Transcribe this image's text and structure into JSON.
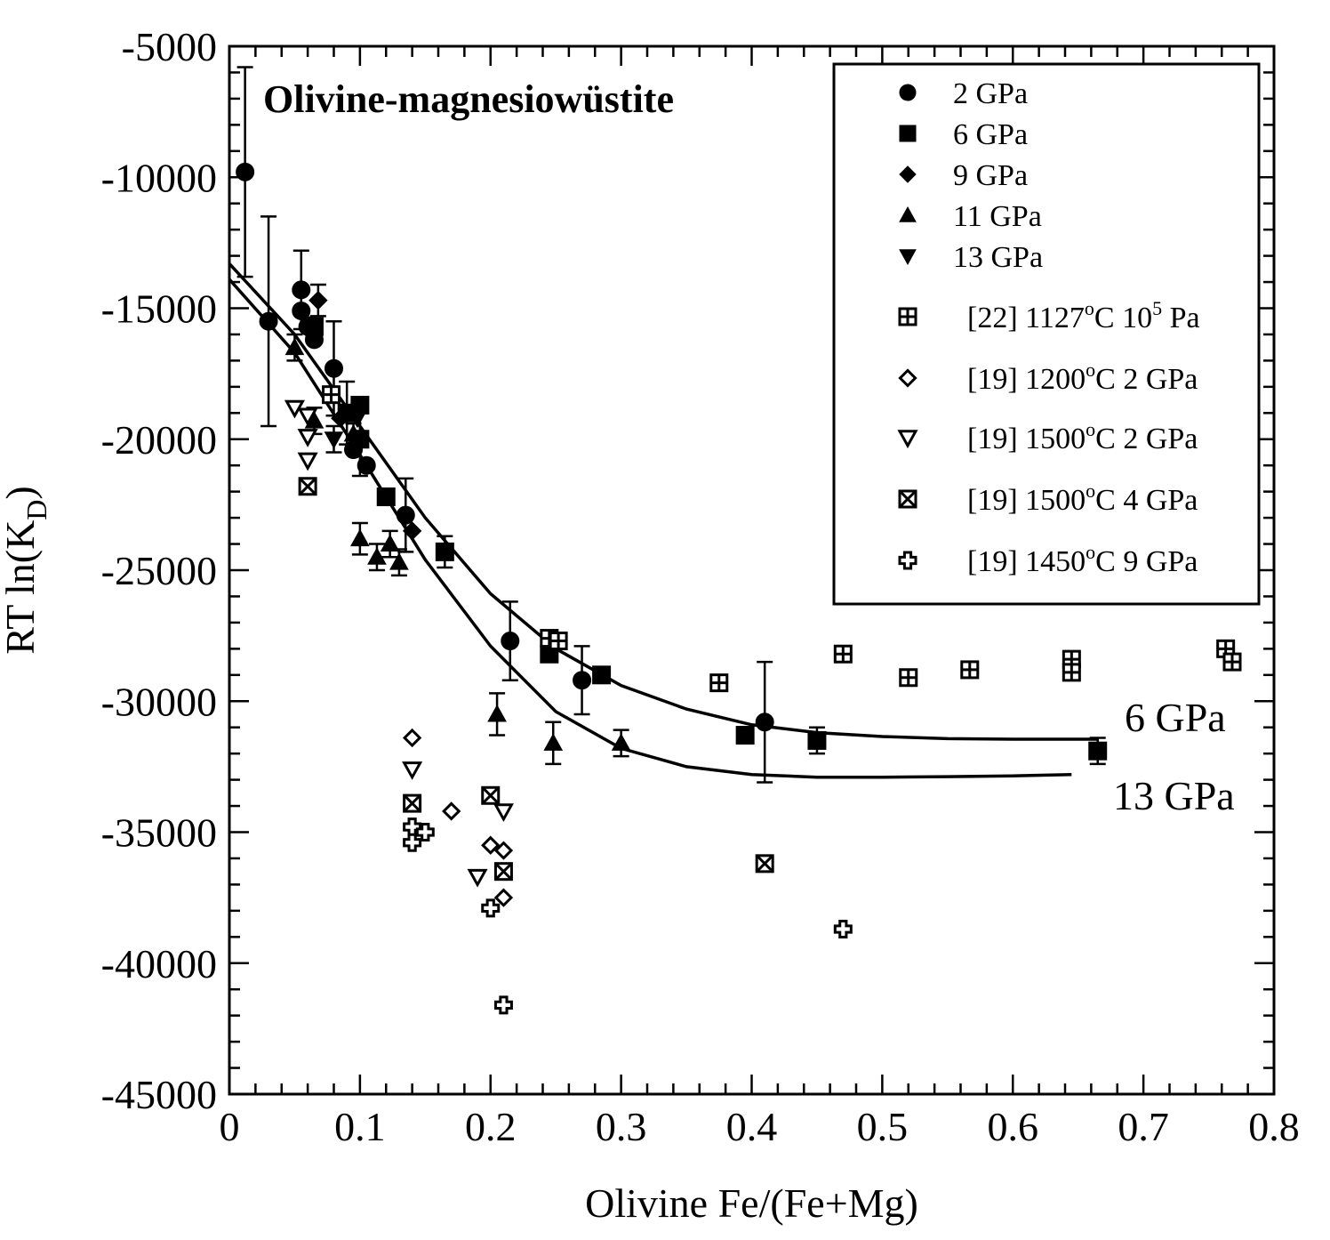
{
  "chart_data": {
    "type": "scatter",
    "title": "Olivine-magnesiowüstite",
    "xlabel": "Olivine Fe/(Fe+Mg)",
    "ylabel_main": "RT ln(K",
    "ylabel_sub": "D",
    "ylabel_end": ")",
    "xlim": [
      0,
      0.8
    ],
    "ylim": [
      -45000,
      -5000
    ],
    "x_ticks": [
      0,
      0.1,
      0.2,
      0.3,
      0.4,
      0.5,
      0.6,
      0.7,
      0.8
    ],
    "x_tick_labels": [
      "0",
      "0.1",
      "0.2",
      "0.3",
      "0.4",
      "0.5",
      "0.6",
      "0.7",
      "0.8"
    ],
    "y_ticks": [
      -5000,
      -10000,
      -15000,
      -20000,
      -25000,
      -30000,
      -35000,
      -40000,
      -45000
    ],
    "y_tick_labels": [
      "-5000",
      "-10000",
      "-15000",
      "-20000",
      "-25000",
      "-30000",
      "-35000",
      "-40000",
      "-45000"
    ],
    "legend_position": "top-right",
    "series": [
      {
        "name": "2 GPa",
        "marker": "circle",
        "filled": true,
        "points": [
          {
            "x": 0.012,
            "y": -9800,
            "err": 4000
          },
          {
            "x": 0.03,
            "y": -15500,
            "err": 4000
          },
          {
            "x": 0.055,
            "y": -14300,
            "err": 1500
          },
          {
            "x": 0.055,
            "y": -15100,
            "err": 0
          },
          {
            "x": 0.06,
            "y": -15700,
            "err": 0
          },
          {
            "x": 0.065,
            "y": -16200,
            "err": 0
          },
          {
            "x": 0.08,
            "y": -17300,
            "err": 1800
          },
          {
            "x": 0.095,
            "y": -20400,
            "err": 0
          },
          {
            "x": 0.105,
            "y": -21000,
            "err": 0
          },
          {
            "x": 0.135,
            "y": -22900,
            "err": 1400
          },
          {
            "x": 0.215,
            "y": -27700,
            "err": 1500
          },
          {
            "x": 0.27,
            "y": -29200,
            "err": 1300
          },
          {
            "x": 0.41,
            "y": -30800,
            "err": 2300
          }
        ]
      },
      {
        "name": "6 GPa",
        "marker": "square",
        "filled": true,
        "points": [
          {
            "x": 0.065,
            "y": -15700,
            "err": 0
          },
          {
            "x": 0.09,
            "y": -19000,
            "err": 1200
          },
          {
            "x": 0.1,
            "y": -18700,
            "err": 0
          },
          {
            "x": 0.1,
            "y": -20000,
            "err": 1400
          },
          {
            "x": 0.12,
            "y": -22200,
            "err": 0
          },
          {
            "x": 0.165,
            "y": -24300,
            "err": 600
          },
          {
            "x": 0.245,
            "y": -28200,
            "err": 0
          },
          {
            "x": 0.285,
            "y": -29000,
            "err": 0
          },
          {
            "x": 0.395,
            "y": -31300,
            "err": 0
          },
          {
            "x": 0.45,
            "y": -31500,
            "err": 500
          },
          {
            "x": 0.665,
            "y": -31900,
            "err": 500
          }
        ]
      },
      {
        "name": "9 GPa",
        "marker": "diamond",
        "filled": true,
        "points": [
          {
            "x": 0.068,
            "y": -14700,
            "err": 600
          },
          {
            "x": 0.085,
            "y": -19200,
            "err": 0
          },
          {
            "x": 0.14,
            "y": -23500,
            "err": 0
          }
        ]
      },
      {
        "name": "11 GPa",
        "marker": "triangle-up",
        "filled": true,
        "points": [
          {
            "x": 0.05,
            "y": -16500,
            "err": 500
          },
          {
            "x": 0.065,
            "y": -19300,
            "err": 500
          },
          {
            "x": 0.095,
            "y": -19800,
            "err": 400
          },
          {
            "x": 0.1,
            "y": -23800,
            "err": 600
          },
          {
            "x": 0.113,
            "y": -24500,
            "err": 500
          },
          {
            "x": 0.123,
            "y": -24000,
            "err": 500
          },
          {
            "x": 0.13,
            "y": -24700,
            "err": 500
          },
          {
            "x": 0.205,
            "y": -30500,
            "err": 800
          },
          {
            "x": 0.248,
            "y": -31600,
            "err": 800
          },
          {
            "x": 0.3,
            "y": -31600,
            "err": 500
          }
        ]
      },
      {
        "name": "13 GPa",
        "marker": "triangle-down",
        "filled": true,
        "points": [
          {
            "x": 0.06,
            "y": -15600,
            "err": 0
          },
          {
            "x": 0.08,
            "y": -20000,
            "err": 500
          },
          {
            "x": 0.098,
            "y": -19200,
            "err": 0
          }
        ]
      },
      {
        "name": "[22] 1127°C 10⁵ Pa",
        "marker": "square-plus",
        "filled": false,
        "points": [
          {
            "x": 0.078,
            "y": -18300
          },
          {
            "x": 0.245,
            "y": -27600
          },
          {
            "x": 0.252,
            "y": -27700
          },
          {
            "x": 0.375,
            "y": -29300
          },
          {
            "x": 0.47,
            "y": -28200
          },
          {
            "x": 0.52,
            "y": -29100
          },
          {
            "x": 0.567,
            "y": -28800
          },
          {
            "x": 0.645,
            "y": -28400
          },
          {
            "x": 0.645,
            "y": -28900
          },
          {
            "x": 0.763,
            "y": -28000
          },
          {
            "x": 0.768,
            "y": -28500
          }
        ]
      },
      {
        "name": "[19] 1200°C 2 GPa",
        "marker": "diamond",
        "filled": false,
        "points": [
          {
            "x": 0.14,
            "y": -31400
          },
          {
            "x": 0.17,
            "y": -34200
          },
          {
            "x": 0.2,
            "y": -35500
          },
          {
            "x": 0.21,
            "y": -35700
          },
          {
            "x": 0.21,
            "y": -37500
          }
        ]
      },
      {
        "name": "[19] 1500°C 2 GPa",
        "marker": "triangle-down",
        "filled": false,
        "points": [
          {
            "x": 0.05,
            "y": -18800
          },
          {
            "x": 0.06,
            "y": -19100
          },
          {
            "x": 0.06,
            "y": -19900
          },
          {
            "x": 0.06,
            "y": -20800
          },
          {
            "x": 0.14,
            "y": -32600
          },
          {
            "x": 0.21,
            "y": -34200
          },
          {
            "x": 0.19,
            "y": -36700
          }
        ]
      },
      {
        "name": "[19] 1500°C 4 GPa",
        "marker": "square-x",
        "filled": false,
        "points": [
          {
            "x": 0.06,
            "y": -21800
          },
          {
            "x": 0.14,
            "y": -33900
          },
          {
            "x": 0.2,
            "y": -33600
          },
          {
            "x": 0.21,
            "y": -36500
          },
          {
            "x": 0.41,
            "y": -36200
          }
        ]
      },
      {
        "name": "[19] 1450°C 9 GPa",
        "marker": "cross",
        "filled": false,
        "points": [
          {
            "x": 0.14,
            "y": -34800
          },
          {
            "x": 0.14,
            "y": -35400
          },
          {
            "x": 0.15,
            "y": -35000
          },
          {
            "x": 0.2,
            "y": -37900
          },
          {
            "x": 0.21,
            "y": -41600
          },
          {
            "x": 0.47,
            "y": -38700
          }
        ]
      }
    ],
    "legend_entries": [
      {
        "marker": "circle",
        "filled": true,
        "label": "2 GPa"
      },
      {
        "marker": "square",
        "filled": true,
        "label": "6 GPa"
      },
      {
        "marker": "diamond",
        "filled": true,
        "label": "9 GPa"
      },
      {
        "marker": "triangle-up",
        "filled": true,
        "label": "11 GPa"
      },
      {
        "marker": "triangle-down",
        "filled": true,
        "label": "13 GPa"
      },
      {
        "marker": "square-plus",
        "filled": false,
        "label_parts": [
          "[22] 1127",
          "o",
          "C 10",
          "5",
          " Pa"
        ]
      },
      {
        "marker": "diamond",
        "filled": false,
        "label_parts": [
          "[19] 1200",
          "o",
          "C 2 GPa"
        ]
      },
      {
        "marker": "triangle-down",
        "filled": false,
        "label_parts": [
          "[19] 1500",
          "o",
          "C 2 GPa"
        ]
      },
      {
        "marker": "square-x",
        "filled": false,
        "label_parts": [
          "[19] 1500",
          "o",
          "C 4 GPa"
        ]
      },
      {
        "marker": "cross",
        "filled": false,
        "label_parts": [
          "[19] 1450",
          "o",
          "C 9 GPa"
        ]
      }
    ],
    "curves": [
      {
        "label": "6 GPa",
        "points": [
          [
            0.0,
            -13300
          ],
          [
            0.05,
            -16000
          ],
          [
            0.1,
            -19500
          ],
          [
            0.15,
            -23000
          ],
          [
            0.2,
            -25900
          ],
          [
            0.25,
            -28000
          ],
          [
            0.3,
            -29400
          ],
          [
            0.35,
            -30300
          ],
          [
            0.4,
            -30900
          ],
          [
            0.45,
            -31200
          ],
          [
            0.5,
            -31350
          ],
          [
            0.55,
            -31430
          ],
          [
            0.6,
            -31450
          ],
          [
            0.665,
            -31450
          ]
        ]
      },
      {
        "label": "13 GPa",
        "points": [
          [
            0.0,
            -13900
          ],
          [
            0.05,
            -16700
          ],
          [
            0.1,
            -20600
          ],
          [
            0.15,
            -24600
          ],
          [
            0.2,
            -27900
          ],
          [
            0.25,
            -30400
          ],
          [
            0.3,
            -31800
          ],
          [
            0.35,
            -32500
          ],
          [
            0.4,
            -32800
          ],
          [
            0.45,
            -32900
          ],
          [
            0.5,
            -32900
          ],
          [
            0.55,
            -32880
          ],
          [
            0.6,
            -32850
          ],
          [
            0.645,
            -32800
          ]
        ]
      }
    ]
  }
}
